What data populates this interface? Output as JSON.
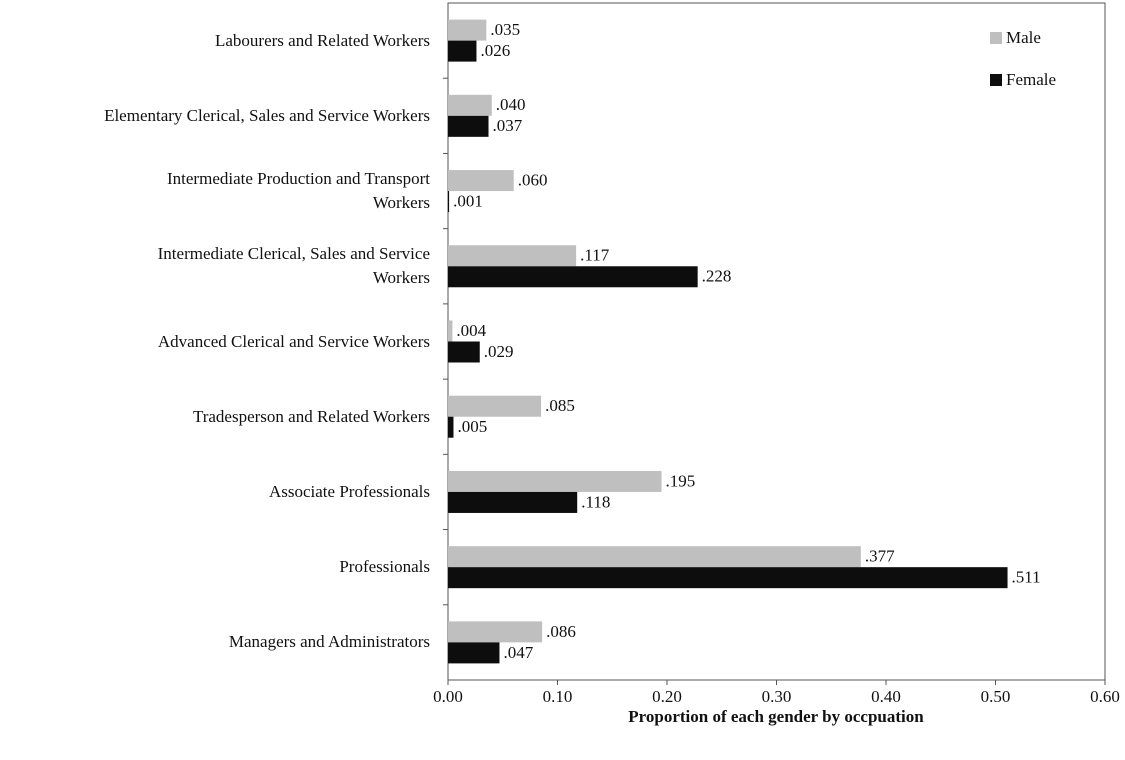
{
  "chart_data": {
    "type": "bar",
    "orientation": "horizontal",
    "x_label": "Proportion of each gender by occpuation",
    "categories": [
      "Labourers and Related Workers",
      "Elementary Clerical, Sales and Service Workers",
      "Intermediate Production and Transport\nWorkers",
      "Intermediate Clerical, Sales and Service\nWorkers",
      "Advanced Clerical and Service Workers",
      "Tradesperson and Related Workers",
      "Associate Professionals",
      "Professionals",
      "Managers and Administrators"
    ],
    "series": [
      {
        "name": "Male",
        "color": "#bfbfbf",
        "values": [
          0.035,
          0.04,
          0.06,
          0.117,
          0.004,
          0.085,
          0.195,
          0.377,
          0.086
        ],
        "value_labels": [
          ".035",
          ".040",
          ".060",
          ".117",
          ".004",
          ".085",
          ".195",
          ".377",
          ".086"
        ]
      },
      {
        "name": "Female",
        "color": "#0d0d0d",
        "values": [
          0.026,
          0.037,
          0.001,
          0.228,
          0.029,
          0.005,
          0.118,
          0.511,
          0.047
        ],
        "value_labels": [
          ".026",
          ".037",
          ".001",
          ".228",
          ".029",
          ".005",
          ".118",
          ".511",
          ".047"
        ]
      }
    ],
    "xlim": [
      0,
      0.6
    ],
    "xticks": [
      {
        "value": 0,
        "label": "0.00"
      },
      {
        "value": 0.1,
        "label": "0.10"
      },
      {
        "value": 0.2,
        "label": "0.20"
      },
      {
        "value": 0.3,
        "label": "0.30"
      },
      {
        "value": 0.4,
        "label": "0.40"
      },
      {
        "value": 0.5,
        "label": "0.50"
      },
      {
        "value": 0.6,
        "label": "0.60"
      }
    ],
    "legend": "upper right"
  }
}
